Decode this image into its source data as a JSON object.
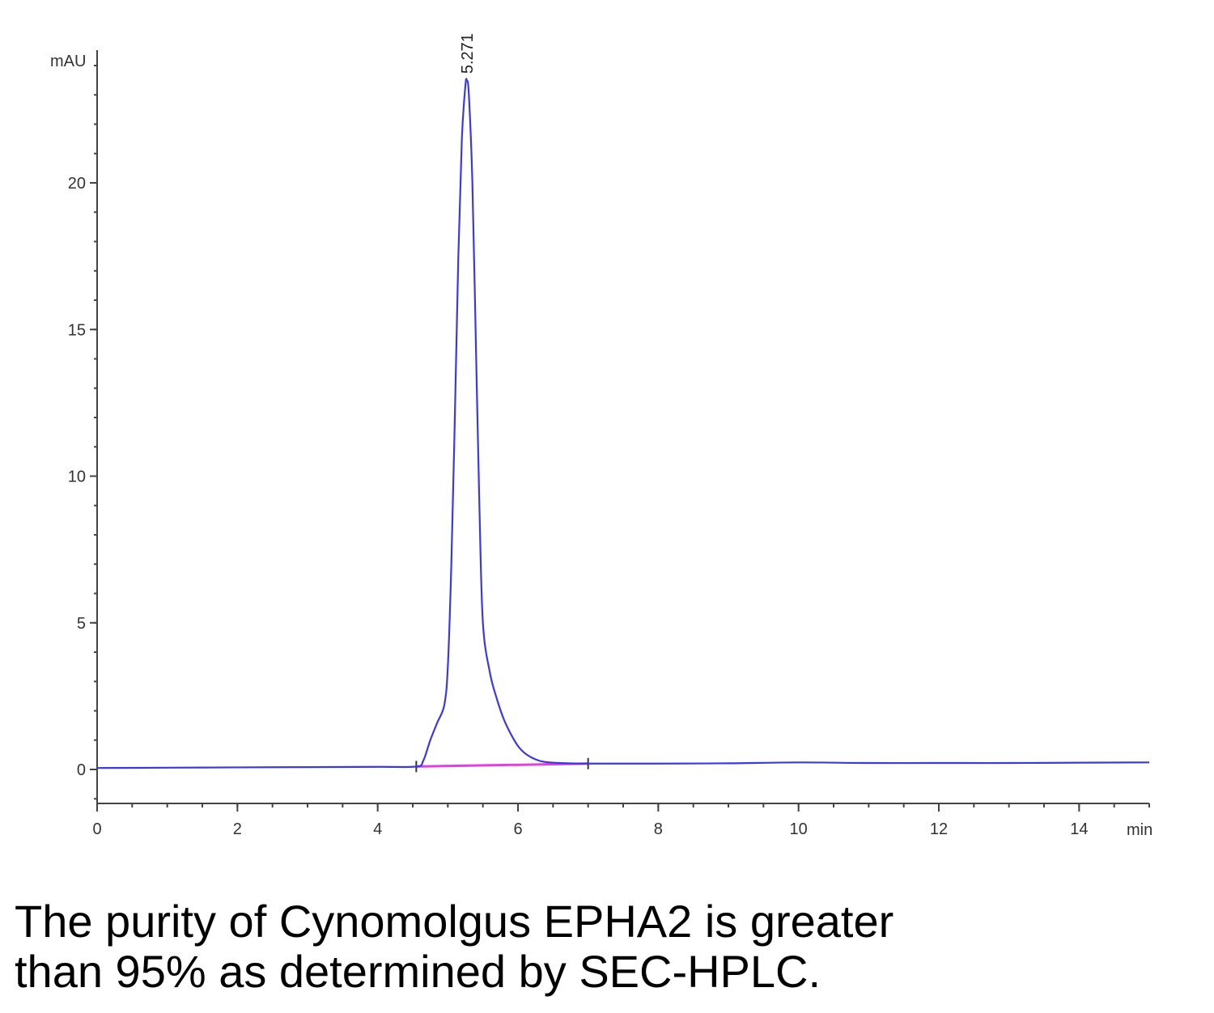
{
  "chart_data": {
    "type": "line",
    "title": "",
    "xlabel": "min",
    "ylabel": "mAU",
    "xlim": [
      0,
      15
    ],
    "ylim": [
      -1.2,
      24.5
    ],
    "x_ticks": [
      0,
      2,
      4,
      6,
      8,
      10,
      12,
      14
    ],
    "y_ticks": [
      0,
      5,
      10,
      15,
      20
    ],
    "grid": false,
    "colors": {
      "trace": "#3a3ae0",
      "baseline": "#e040e0",
      "axis": "#444444"
    },
    "peak_label": "5.271",
    "series": [
      {
        "x": [
          0,
          1,
          2,
          3,
          4,
          4.55,
          4.65,
          4.75,
          4.85,
          4.95,
          5.0,
          5.05,
          5.1,
          5.15,
          5.2,
          5.25,
          5.271,
          5.3,
          5.35,
          5.4,
          5.45,
          5.5,
          5.6,
          5.7,
          5.8,
          5.9,
          6.0,
          6.1,
          6.2,
          6.3,
          6.4,
          6.6,
          6.9,
          7.5,
          8,
          9,
          10,
          11,
          12,
          13,
          14,
          15
        ],
        "y": [
          0.05,
          0.06,
          0.07,
          0.08,
          0.09,
          0.1,
          0.3,
          1.0,
          1.6,
          2.2,
          3.5,
          7.0,
          12.0,
          17.5,
          21.5,
          23.3,
          23.5,
          23.0,
          20.0,
          14.5,
          9.0,
          5.0,
          3.3,
          2.4,
          1.7,
          1.2,
          0.8,
          0.55,
          0.4,
          0.3,
          0.25,
          0.22,
          0.2,
          0.2,
          0.2,
          0.21,
          0.24,
          0.22,
          0.22,
          0.22,
          0.23,
          0.24
        ]
      }
    ],
    "baseline": {
      "x": [
        4.55,
        7.0
      ],
      "y": [
        0.1,
        0.2
      ]
    }
  },
  "caption": {
    "line1": "The purity of Cynomolgus EPHA2 is greater",
    "line2": "than 95% as determined by SEC-HPLC."
  }
}
